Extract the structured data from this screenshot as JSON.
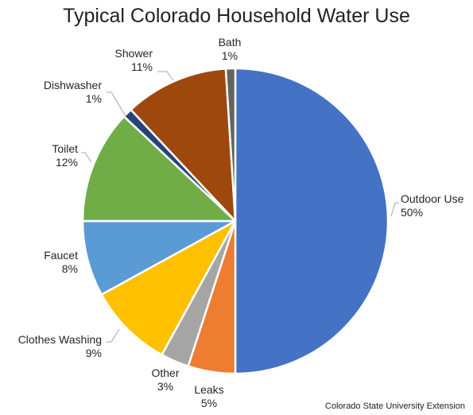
{
  "chart_data": {
    "type": "pie",
    "title": "Typical Colorado Household Water Use",
    "source": "Colorado State University Extension",
    "legend": "none",
    "slices": [
      {
        "label": "Outdoor Use",
        "pct_label": "50%",
        "value": 50,
        "color": "#4472C4"
      },
      {
        "label": "Leaks",
        "pct_label": "5%",
        "value": 5,
        "color": "#ED7D31"
      },
      {
        "label": "Other",
        "pct_label": "3%",
        "value": 3,
        "color": "#A5A5A5"
      },
      {
        "label": "Clothes Washing",
        "pct_label": "9%",
        "value": 9,
        "color": "#FFC000"
      },
      {
        "label": "Faucet",
        "pct_label": "8%",
        "value": 8,
        "color": "#5B9BD5"
      },
      {
        "label": "Toilet",
        "pct_label": "12%",
        "value": 12,
        "color": "#70AD47"
      },
      {
        "label": "Dishwasher",
        "pct_label": "1%",
        "value": 1,
        "color": "#264478"
      },
      {
        "label": "Shower",
        "pct_label": "11%",
        "value": 11,
        "color": "#9E480E"
      },
      {
        "label": "Bath",
        "pct_label": "1%",
        "value": 1,
        "color": "#636363"
      }
    ]
  }
}
